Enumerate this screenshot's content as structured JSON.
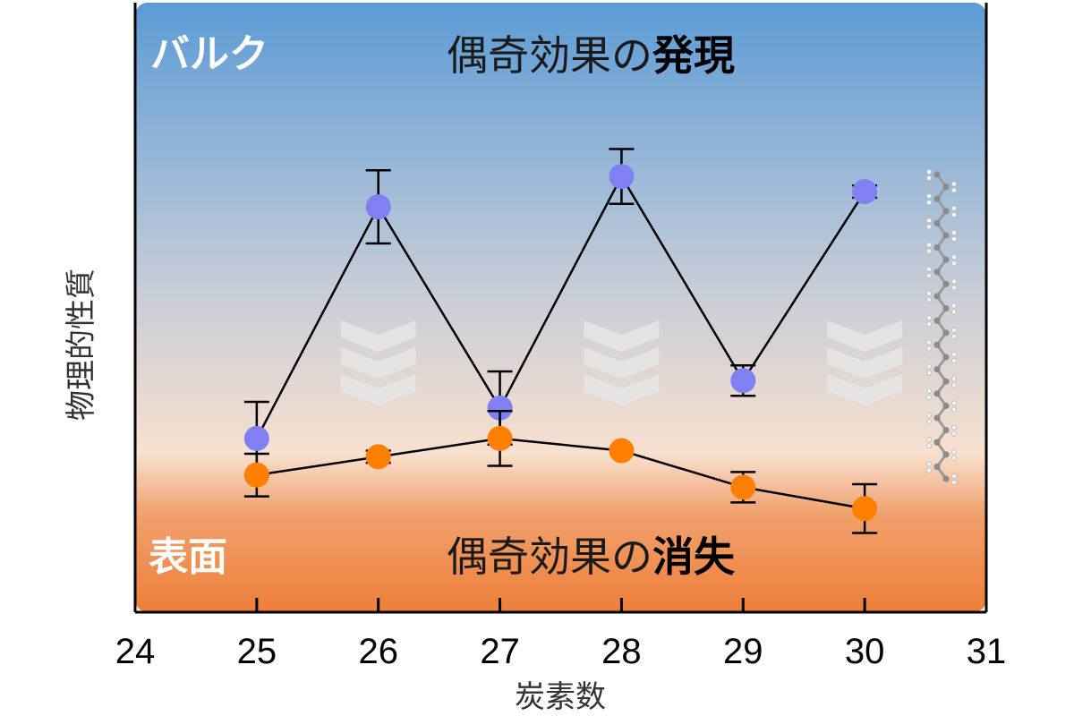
{
  "chart_data": {
    "type": "line",
    "xlabel": "炭素数",
    "ylabel": "物理的性質",
    "xlim": [
      24,
      31
    ],
    "x_ticks": [
      24,
      25,
      26,
      27,
      28,
      29,
      30,
      31
    ],
    "tick_labels": [
      "24",
      "25",
      "26",
      "27",
      "28",
      "29",
      "30",
      "31"
    ],
    "ylim": [
      0,
      10
    ],
    "y_ticks_shown": false,
    "grid": false,
    "legend": "none",
    "series": [
      {
        "region": "bulk",
        "color": "#8080f2",
        "x": [
          25,
          26,
          27,
          28,
          29,
          30
        ],
        "y": [
          2.85,
          6.65,
          3.35,
          7.15,
          3.8,
          6.9
        ],
        "error": [
          0.6,
          0.6,
          0.6,
          0.45,
          0.25,
          0.1
        ]
      },
      {
        "region": "surface",
        "color": "#ff8000",
        "x": [
          25,
          26,
          27,
          28,
          29,
          30
        ],
        "y": [
          2.25,
          2.55,
          2.85,
          2.65,
          2.05,
          1.7
        ],
        "error": [
          0.35,
          0.1,
          0.45,
          0.0,
          0.25,
          0.4
        ]
      }
    ],
    "annotations": {
      "bulk_label": "バルク",
      "surface_label": "表面",
      "top_text": "偶奇効果の",
      "top_emphasis": "発現",
      "bottom_text": "偶奇効果の",
      "bottom_emphasis": "消失"
    },
    "background_gradient": [
      "#5b9bd5",
      "#c3cbd8",
      "#f8e0cf",
      "#f0a06c",
      "#ee7f3a"
    ],
    "chevron_arrows_at_x": [
      26,
      28,
      30
    ],
    "chevron_direction": "down",
    "chevron_color": "#e6e6e6",
    "molecule_icon": "alkane-chain-icon"
  }
}
